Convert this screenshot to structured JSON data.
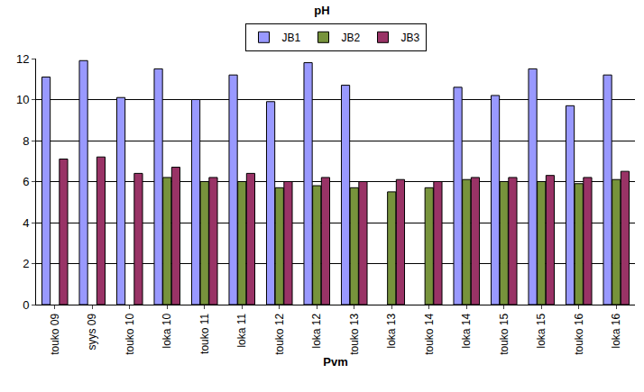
{
  "chart_data": {
    "type": "bar",
    "title": "pH",
    "x_label": "Pvm",
    "categories": [
      "touko 09",
      "syys 09",
      "touko 10",
      "loka 10",
      "touko 11",
      "loka 11",
      "touko 12",
      "loka 12",
      "touko 13",
      "loka 13",
      "touko 14",
      "loka 14",
      "touko 15",
      "loka 15",
      "touko 16",
      "loka 16"
    ],
    "series": [
      {
        "name": "JB1",
        "color": "#9999ff",
        "values": [
          11.1,
          11.9,
          10.1,
          11.5,
          10.0,
          11.2,
          9.9,
          11.8,
          10.7,
          null,
          null,
          10.6,
          10.2,
          11.5,
          9.7,
          11.2
        ]
      },
      {
        "name": "JB2",
        "color": "#77933c",
        "values": [
          null,
          null,
          null,
          6.2,
          6.0,
          6.0,
          5.7,
          5.8,
          5.7,
          5.5,
          5.7,
          6.1,
          6.0,
          6.0,
          5.9,
          6.1
        ]
      },
      {
        "name": "JB3",
        "color": "#993366",
        "values": [
          7.1,
          7.2,
          6.4,
          6.7,
          6.2,
          6.4,
          6.0,
          6.2,
          6.0,
          6.1,
          6.0,
          6.2,
          6.2,
          6.3,
          6.2,
          6.5
        ]
      }
    ],
    "ylim": [
      0,
      12
    ],
    "yticks": [
      0,
      2,
      4,
      6,
      8,
      10,
      12
    ],
    "grid": true,
    "legend": "top"
  }
}
